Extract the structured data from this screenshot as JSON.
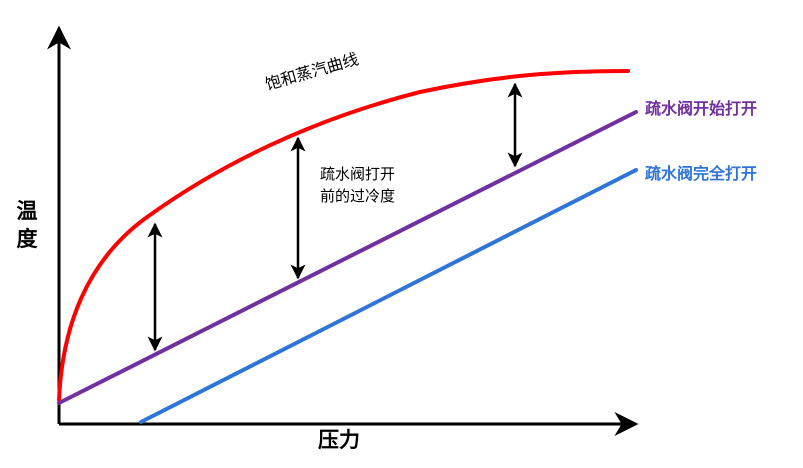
{
  "axes": {
    "y_label": "温度",
    "x_label": "压力"
  },
  "curves": {
    "saturated": {
      "label": "饱和蒸汽曲线",
      "color": "#ff0000"
    },
    "drain_open_start": {
      "label": "疏水阀开始打开",
      "color": "#7030a0"
    },
    "drain_open_full": {
      "label": "疏水阀完全打开",
      "color": "#2e75d6"
    }
  },
  "annotation": {
    "subcooling_line1": "疏水阀打开",
    "subcooling_line2": "前的过冷度"
  }
}
